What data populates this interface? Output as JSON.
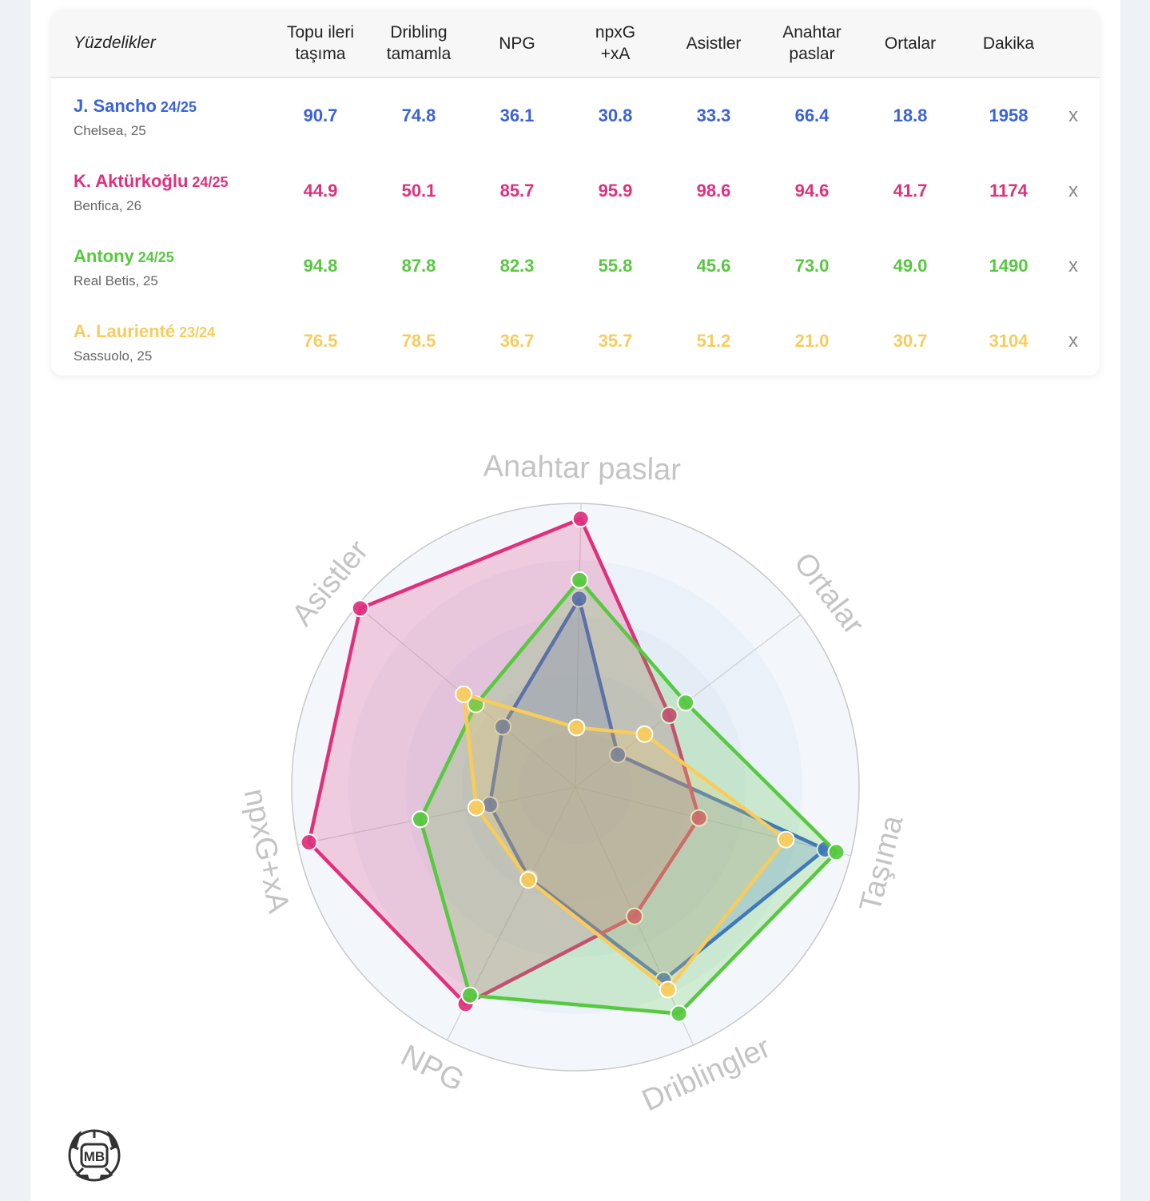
{
  "table": {
    "header_label": "Yüzdelikler",
    "columns": [
      {
        "line1": "Topu ileri",
        "line2": "taşıma"
      },
      {
        "line1": "Dribling",
        "line2": "tamamla"
      },
      {
        "line1": "NPG",
        "line2": ""
      },
      {
        "line1": "npxG",
        "line2": "+xA"
      },
      {
        "line1": "Asistler",
        "line2": ""
      },
      {
        "line1": "Anahtar",
        "line2": "paslar"
      },
      {
        "line1": "Ortalar",
        "line2": ""
      },
      {
        "line1": "Dakika",
        "line2": ""
      }
    ],
    "remove_label": "x",
    "players": [
      {
        "name": "J. Sancho",
        "season": "24/25",
        "club": "Chelsea, 25",
        "color": "#3b63d9",
        "values": [
          "90.7",
          "74.8",
          "36.1",
          "30.8",
          "33.3",
          "66.4",
          "18.8",
          "1958"
        ]
      },
      {
        "name": "K. Aktürkoğlu",
        "season": "24/25",
        "club": "Benfica, 26",
        "color": "#e0307c",
        "values": [
          "44.9",
          "50.1",
          "85.7",
          "95.9",
          "98.6",
          "94.6",
          "41.7",
          "1174"
        ]
      },
      {
        "name": "Antony",
        "season": "24/25",
        "club": "Real Betis, 25",
        "color": "#56c93f",
        "values": [
          "94.8",
          "87.8",
          "82.3",
          "55.8",
          "45.6",
          "73.0",
          "49.0",
          "1490"
        ]
      },
      {
        "name": "A. Laurienté",
        "season": "23/24",
        "club": "Sassuolo, 25",
        "color": "#f8cc5c",
        "values": [
          "76.5",
          "78.5",
          "36.7",
          "35.7",
          "51.2",
          "21.0",
          "30.7",
          "3104"
        ]
      }
    ]
  },
  "chart_data": {
    "type": "radar",
    "axes": [
      "Anahtar paslar",
      "Ortalar",
      "Taşıma",
      "Driblingler",
      "NPG",
      "npxG+xA",
      "Asistler"
    ],
    "range": [
      0,
      100
    ],
    "series": [
      {
        "name": "J. Sancho",
        "color": "#3b63d9",
        "values": [
          66.4,
          18.8,
          90.7,
          74.8,
          36.1,
          30.8,
          33.3
        ]
      },
      {
        "name": "K. Aktürkoğlu",
        "color": "#e0307c",
        "values": [
          94.6,
          41.7,
          44.9,
          50.1,
          85.7,
          95.9,
          98.6
        ]
      },
      {
        "name": "Antony",
        "color": "#56c93f",
        "values": [
          73.0,
          49.0,
          94.8,
          87.8,
          82.3,
          55.8,
          45.6
        ]
      },
      {
        "name": "A. Laurienté",
        "color": "#f8cc5c",
        "values": [
          21.0,
          30.7,
          76.5,
          78.5,
          36.7,
          35.7,
          51.2
        ]
      }
    ]
  },
  "logo": {
    "text": "MB"
  }
}
